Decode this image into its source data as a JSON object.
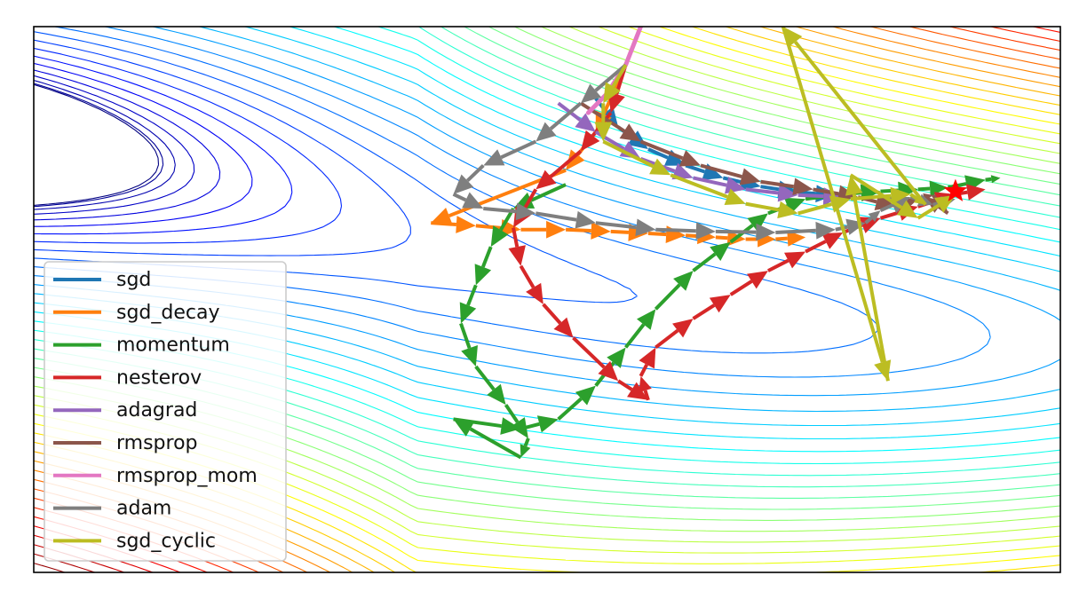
{
  "chart_data": {
    "type": "line",
    "title": "",
    "xlabel": "",
    "ylabel": "",
    "grid": false,
    "legend": {
      "placement": "lower-left"
    },
    "contour_colormap": "jet",
    "contour_line_style": "thin",
    "optimum_marker": {
      "shape": "star",
      "color": "#ff0000",
      "point": [
        8.8,
        0.28
      ]
    },
    "xlim": [
      -3.5,
      10.2
    ],
    "ylim": [
      -3.7,
      2.0
    ],
    "series": [
      {
        "name": "sgd",
        "color": "#1f77b4",
        "style": "quiver",
        "points": [
          [
            4.0,
            1.25
          ],
          [
            4.3,
            0.95
          ],
          [
            4.7,
            0.72
          ],
          [
            5.2,
            0.55
          ],
          [
            5.7,
            0.42
          ],
          [
            6.2,
            0.33
          ],
          [
            6.7,
            0.27
          ],
          [
            7.2,
            0.24
          ]
        ]
      },
      {
        "name": "sgd_decay",
        "color": "#ff7f0e",
        "style": "quiver",
        "points": [
          [
            4.4,
            1.6
          ],
          [
            4.0,
            0.9
          ],
          [
            3.6,
            0.5
          ],
          [
            1.8,
            -0.05
          ],
          [
            2.4,
            -0.08
          ],
          [
            3.0,
            -0.12
          ],
          [
            3.6,
            -0.12
          ],
          [
            4.2,
            -0.14
          ],
          [
            4.7,
            -0.16
          ],
          [
            5.2,
            -0.18
          ],
          [
            5.6,
            -0.2
          ],
          [
            6.0,
            -0.22
          ],
          [
            6.4,
            -0.22
          ],
          [
            6.8,
            -0.2
          ]
        ]
      },
      {
        "name": "momentum",
        "color": "#2ca02c",
        "style": "quiver",
        "points": [
          [
            3.6,
            0.35
          ],
          [
            2.9,
            0.1
          ],
          [
            2.6,
            -0.3
          ],
          [
            2.4,
            -0.7
          ],
          [
            2.2,
            -1.1
          ],
          [
            2.4,
            -1.55
          ],
          [
            2.8,
            -1.95
          ],
          [
            3.1,
            -2.3
          ],
          [
            3.0,
            -2.5
          ],
          [
            2.1,
            -2.1
          ],
          [
            3.0,
            -2.2
          ],
          [
            3.5,
            -2.1
          ],
          [
            4.0,
            -1.75
          ],
          [
            4.4,
            -1.35
          ],
          [
            4.8,
            -0.95
          ],
          [
            5.3,
            -0.55
          ],
          [
            5.8,
            -0.25
          ],
          [
            6.3,
            0.05
          ],
          [
            6.8,
            0.2
          ],
          [
            7.3,
            0.25
          ],
          [
            7.8,
            0.28
          ],
          [
            8.3,
            0.3
          ],
          [
            8.7,
            0.32
          ],
          [
            9.2,
            0.4
          ],
          [
            9.4,
            0.42
          ]
        ]
      },
      {
        "name": "nesterov",
        "color": "#d62728",
        "style": "quiver",
        "points": [
          [
            4.4,
            1.6
          ],
          [
            4.2,
            1.1
          ],
          [
            3.8,
            0.7
          ],
          [
            3.2,
            0.3
          ],
          [
            2.9,
            -0.1
          ],
          [
            3.0,
            -0.5
          ],
          [
            3.3,
            -0.9
          ],
          [
            3.7,
            -1.25
          ],
          [
            4.3,
            -1.7
          ],
          [
            4.7,
            -1.9
          ],
          [
            4.6,
            -1.65
          ],
          [
            4.8,
            -1.35
          ],
          [
            5.3,
            -1.05
          ],
          [
            5.8,
            -0.8
          ],
          [
            6.3,
            -0.55
          ],
          [
            6.8,
            -0.35
          ],
          [
            7.3,
            -0.15
          ],
          [
            7.8,
            0.0
          ],
          [
            8.3,
            0.12
          ],
          [
            8.8,
            0.25
          ],
          [
            9.2,
            0.3
          ]
        ]
      },
      {
        "name": "adagrad",
        "color": "#9467bd",
        "style": "quiver",
        "points": [
          [
            3.5,
            1.2
          ],
          [
            4.0,
            0.9
          ],
          [
            4.6,
            0.62
          ],
          [
            5.3,
            0.42
          ],
          [
            6.0,
            0.3
          ],
          [
            6.7,
            0.24
          ],
          [
            7.3,
            0.22
          ]
        ]
      },
      {
        "name": "rmsprop",
        "color": "#8c564b",
        "style": "quiver",
        "points": [
          [
            3.8,
            1.2
          ],
          [
            4.6,
            0.8
          ],
          [
            5.4,
            0.55
          ],
          [
            6.2,
            0.38
          ],
          [
            6.9,
            0.3
          ],
          [
            7.5,
            0.22
          ],
          [
            8.0,
            0.12
          ],
          [
            8.3,
            0.2
          ],
          [
            8.5,
            0.24
          ],
          [
            8.7,
            0.05
          ],
          [
            8.4,
            0.22
          ]
        ]
      },
      {
        "name": "rmsprop_mom",
        "color": "#e377c2",
        "style": "line",
        "points": [
          [
            4.6,
            2.0
          ],
          [
            4.4,
            1.6
          ],
          [
            4.15,
            1.3
          ],
          [
            3.9,
            1.1
          ]
        ]
      },
      {
        "name": "adam",
        "color": "#7f7f7f",
        "style": "quiver",
        "points": [
          [
            4.4,
            1.6
          ],
          [
            3.8,
            1.2
          ],
          [
            3.2,
            0.8
          ],
          [
            2.5,
            0.55
          ],
          [
            2.1,
            0.25
          ],
          [
            2.5,
            0.1
          ],
          [
            3.2,
            0.05
          ],
          [
            4.0,
            -0.05
          ],
          [
            4.8,
            -0.12
          ],
          [
            5.6,
            -0.14
          ],
          [
            6.4,
            -0.15
          ],
          [
            7.2,
            -0.12
          ],
          [
            7.6,
            -0.05
          ],
          [
            7.8,
            0.08
          ],
          [
            8.2,
            0.22
          ],
          [
            8.5,
            0.14
          ],
          [
            8.8,
            0.2
          ]
        ]
      },
      {
        "name": "sgd_cyclic",
        "color": "#bcbd22",
        "style": "quiver",
        "points": [
          [
            4.4,
            1.6
          ],
          [
            4.1,
            1.2
          ],
          [
            4.1,
            0.8
          ],
          [
            5.0,
            0.45
          ],
          [
            6.0,
            0.15
          ],
          [
            6.7,
            0.05
          ],
          [
            7.4,
            0.2
          ],
          [
            8.2,
            0.25
          ],
          [
            8.4,
            0.14
          ],
          [
            6.5,
            2.0
          ],
          [
            7.9,
            -1.7
          ],
          [
            7.4,
            0.45
          ],
          [
            8.3,
            0.0
          ],
          [
            8.8,
            0.24
          ]
        ]
      }
    ]
  }
}
